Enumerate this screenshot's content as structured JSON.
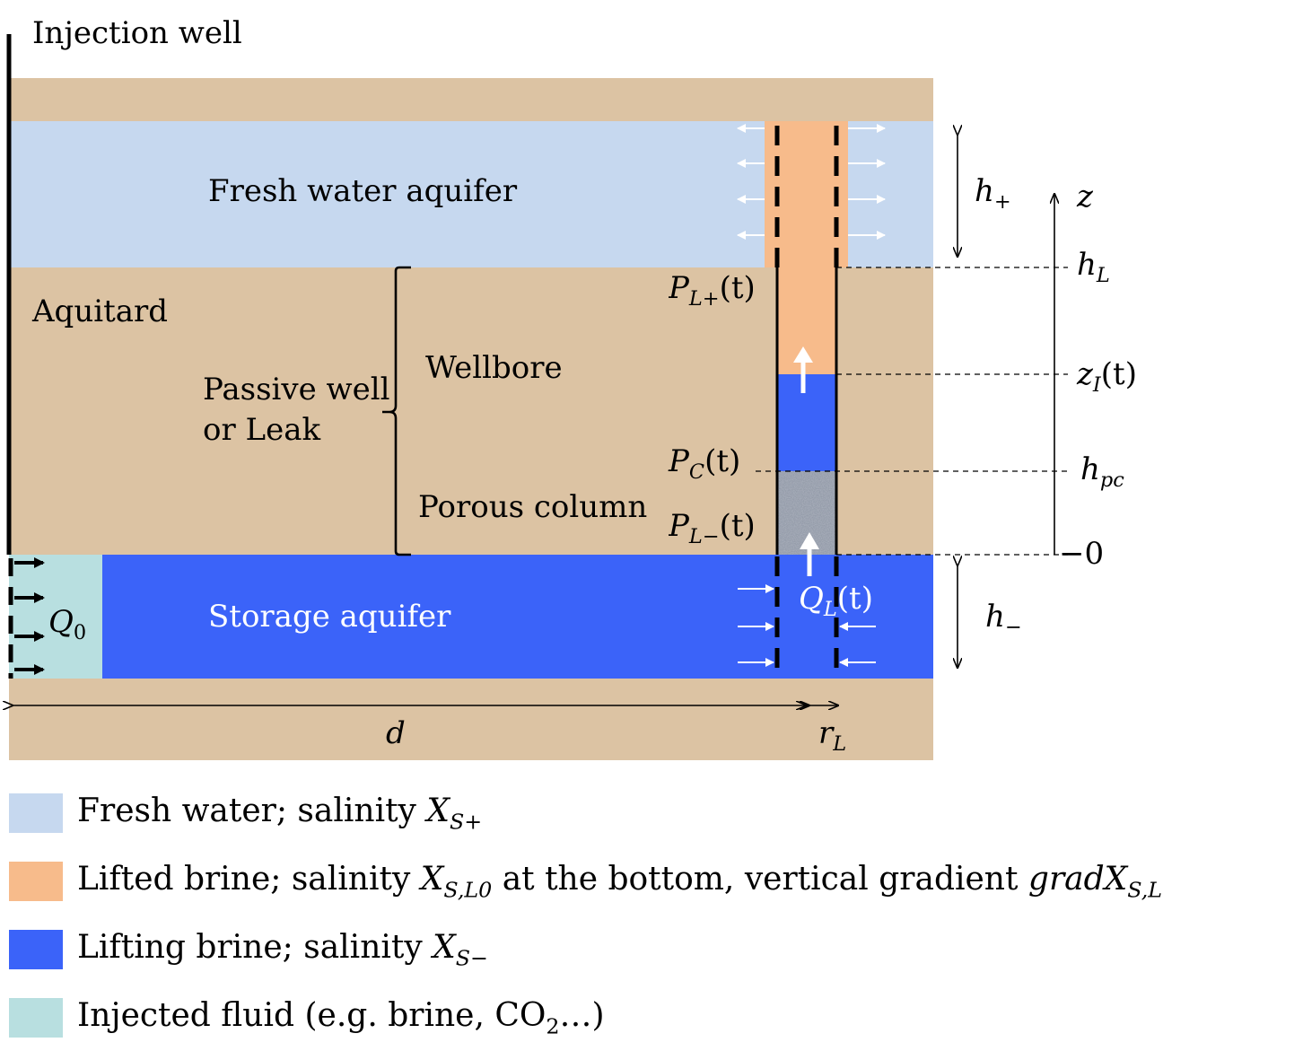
{
  "title": "Injection well",
  "colors": {
    "aquitard": "#dcc3a3",
    "fresh_water": "#c6d8ef",
    "lifted_brine": "#f7bb8b",
    "lifting_brine": "#3b63f9",
    "injected_fluid": "#b8dfe0",
    "porous_column": "#8e96a4"
  },
  "layers": {
    "fresh_water_aquifer": "Fresh water aquifer",
    "aquitard": "Aquitard",
    "storage_aquifer": "Storage aquifer"
  },
  "passive_well": {
    "label_line1": "Passive well",
    "label_line2": "or Leak",
    "wellbore": "Wellbore",
    "porous_column": "Porous column"
  },
  "symbols": {
    "h_plus": {
      "base": "h",
      "sub": "+"
    },
    "h_minus": {
      "base": "h",
      "sub": "−"
    },
    "z": "z",
    "h_L": {
      "base": "h",
      "sub": "L"
    },
    "z_I": {
      "base": "z",
      "sub": "I",
      "arg": "(t)"
    },
    "h_pc": {
      "base": "h",
      "sub": "pc"
    },
    "zero": "0",
    "P_L_plus": {
      "base": "P",
      "sub": "L+",
      "arg": "(t)"
    },
    "P_C": {
      "base": "P",
      "sub": "C",
      "arg": "(t)"
    },
    "P_L_minus": {
      "base": "P",
      "sub": "L−",
      "arg": "(t)"
    },
    "Q_L": {
      "base": "Q",
      "sub": "L",
      "arg": "(t)"
    },
    "Q_0": {
      "base": "Q",
      "sub": "0"
    },
    "d": "d",
    "r_L": {
      "base": "r",
      "sub": "L"
    }
  },
  "legend": [
    {
      "text": "Fresh water; salinity ",
      "sym": "X",
      "sub": "S+",
      "tail": ""
    },
    {
      "text": "Lifted brine; salinity ",
      "sym": "X",
      "sub": "S,L0",
      "tail": " at the bottom, vertical gradient ",
      "sym2": "gradX",
      "sub2": "S,L"
    },
    {
      "text": "Lifting brine; salinity ",
      "sym": "X",
      "sub": "S−",
      "tail": ""
    },
    {
      "text": "Injected fluid (e.g. brine, CO",
      "sub_plain": "2",
      "tail": "…)"
    }
  ]
}
